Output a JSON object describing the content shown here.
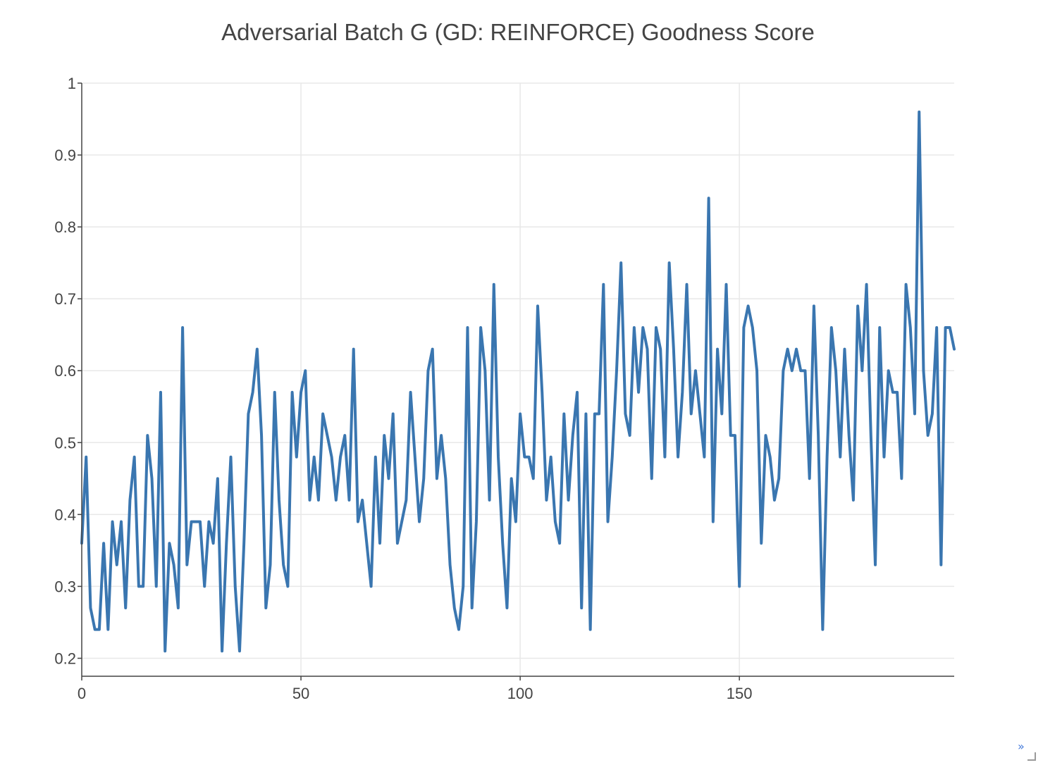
{
  "chart_data": {
    "type": "line",
    "title": "Adversarial Batch G (GD: REINFORCE) Goodness Score",
    "xlabel": "",
    "ylabel": "",
    "xlim": [
      0,
      199
    ],
    "ylim": [
      0.175,
      1.0
    ],
    "x_ticks": [
      0,
      50,
      100,
      150
    ],
    "x_tick_labels": [
      "0",
      "50",
      "100",
      "150"
    ],
    "y_ticks": [
      0.2,
      0.3,
      0.4,
      0.5,
      0.6,
      0.7,
      0.8,
      0.9,
      1.0
    ],
    "y_tick_labels": [
      "0.2",
      "0.3",
      "0.4",
      "0.5",
      "0.6",
      "0.7",
      "0.8",
      "0.9",
      "1"
    ],
    "grid": true,
    "colors": {
      "series": "#3a76b0",
      "grid": "#e8e8e8",
      "axis": "#444444",
      "text": "#444444"
    },
    "series": [
      {
        "name": "",
        "x_start": 0,
        "x_step": 1,
        "values": [
          0.36,
          0.48,
          0.27,
          0.24,
          0.24,
          0.36,
          0.24,
          0.39,
          0.33,
          0.39,
          0.27,
          0.42,
          0.48,
          0.3,
          0.3,
          0.51,
          0.45,
          0.3,
          0.57,
          0.21,
          0.36,
          0.33,
          0.27,
          0.66,
          0.33,
          0.39,
          0.39,
          0.39,
          0.3,
          0.39,
          0.36,
          0.45,
          0.21,
          0.36,
          0.48,
          0.3,
          0.21,
          0.36,
          0.54,
          0.57,
          0.63,
          0.51,
          0.27,
          0.33,
          0.57,
          0.42,
          0.33,
          0.3,
          0.57,
          0.48,
          0.57,
          0.6,
          0.42,
          0.48,
          0.42,
          0.54,
          0.51,
          0.48,
          0.42,
          0.48,
          0.51,
          0.42,
          0.63,
          0.39,
          0.42,
          0.36,
          0.3,
          0.48,
          0.36,
          0.51,
          0.45,
          0.54,
          0.36,
          0.39,
          0.42,
          0.57,
          0.48,
          0.39,
          0.45,
          0.6,
          0.63,
          0.45,
          0.51,
          0.45,
          0.33,
          0.27,
          0.24,
          0.3,
          0.66,
          0.27,
          0.39,
          0.66,
          0.6,
          0.42,
          0.72,
          0.48,
          0.36,
          0.27,
          0.45,
          0.39,
          0.54,
          0.48,
          0.48,
          0.45,
          0.69,
          0.57,
          0.42,
          0.48,
          0.39,
          0.36,
          0.54,
          0.42,
          0.51,
          0.57,
          0.27,
          0.54,
          0.24,
          0.54,
          0.54,
          0.72,
          0.39,
          0.48,
          0.6,
          0.75,
          0.54,
          0.51,
          0.66,
          0.57,
          0.66,
          0.63,
          0.45,
          0.66,
          0.63,
          0.48,
          0.75,
          0.63,
          0.48,
          0.57,
          0.72,
          0.54,
          0.6,
          0.54,
          0.48,
          0.84,
          0.39,
          0.63,
          0.54,
          0.72,
          0.51,
          0.51,
          0.3,
          0.66,
          0.69,
          0.66,
          0.6,
          0.36,
          0.51,
          0.48,
          0.42,
          0.45,
          0.6,
          0.63,
          0.6,
          0.63,
          0.6,
          0.6,
          0.45,
          0.69,
          0.51,
          0.24,
          0.48,
          0.66,
          0.6,
          0.48,
          0.63,
          0.51,
          0.42,
          0.69,
          0.6,
          0.72,
          0.51,
          0.33,
          0.66,
          0.48,
          0.6,
          0.57,
          0.57,
          0.45,
          0.72,
          0.66,
          0.54,
          0.96,
          0.6,
          0.51,
          0.54,
          0.66,
          0.33,
          0.66,
          0.66,
          0.63
        ]
      }
    ]
  },
  "ui": {
    "corner_link_text": "»"
  }
}
